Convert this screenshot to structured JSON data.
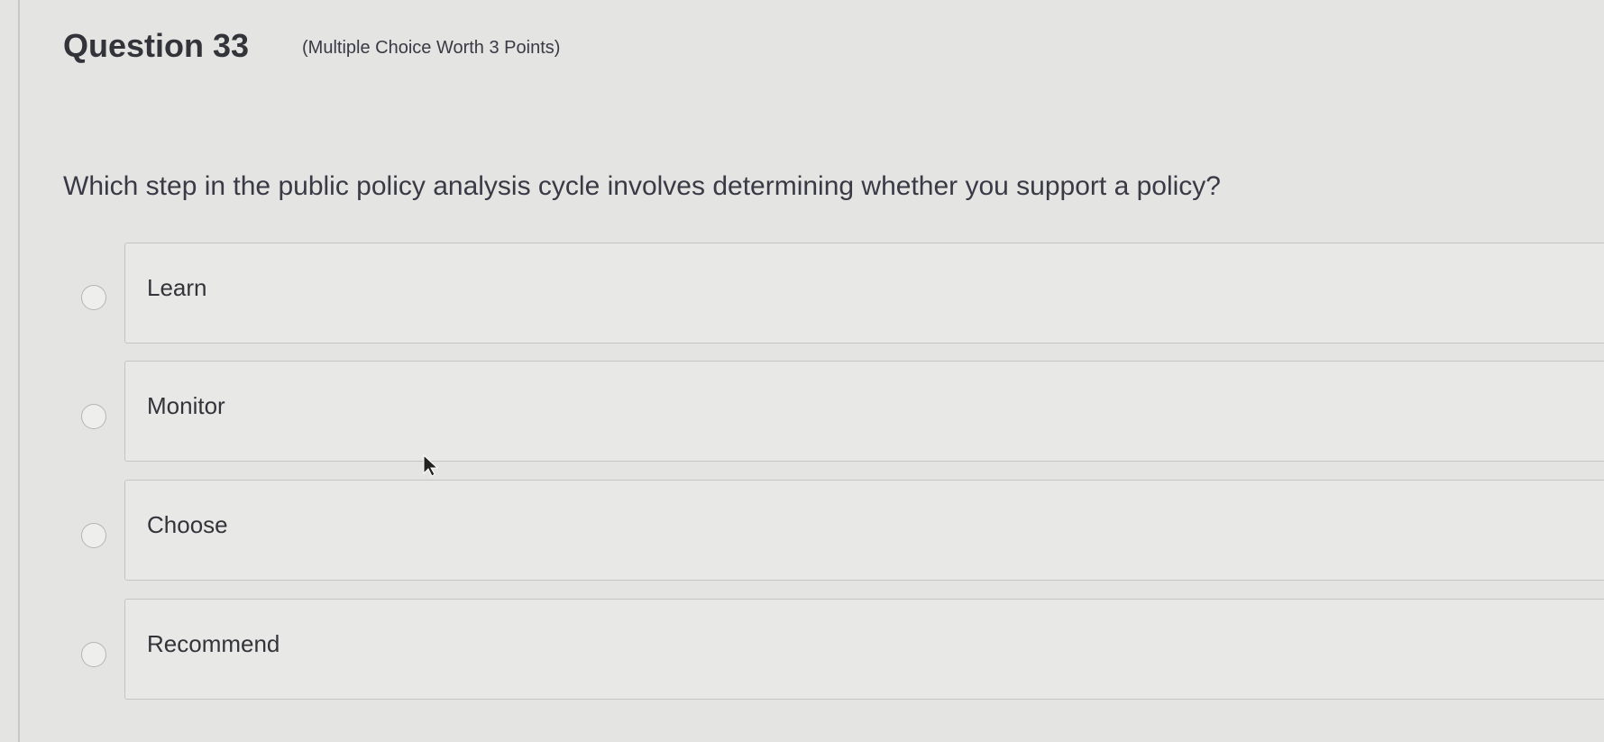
{
  "question": {
    "title": "Question 33",
    "subtitle": "(Multiple Choice Worth 3 Points)",
    "text": "Which step in the public policy analysis cycle involves determining whether you support a policy?"
  },
  "options": [
    {
      "label": "Learn",
      "selected": false
    },
    {
      "label": "Monitor",
      "selected": false
    },
    {
      "label": "Choose",
      "selected": false
    },
    {
      "label": "Recommend",
      "selected": false
    }
  ]
}
